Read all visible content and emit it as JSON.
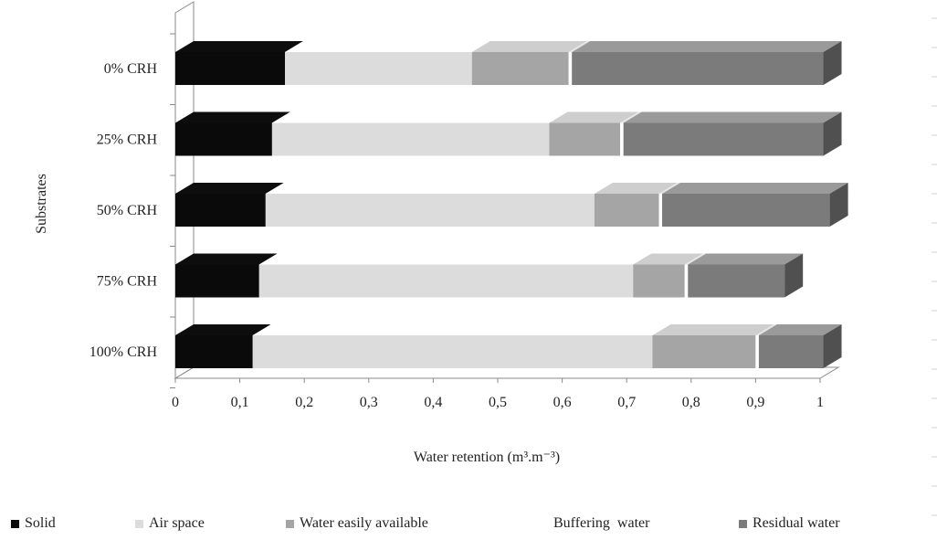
{
  "chart_data": {
    "type": "bar",
    "orientation": "horizontal",
    "stacked": true,
    "style": "3d",
    "categories": [
      "0% CRH",
      "25% CRH",
      "50% CRH",
      "75% CRH",
      "100% CRH"
    ],
    "series": [
      {
        "name": "Solid",
        "color": "#0a0a0a",
        "values": [
          0.17,
          0.15,
          0.14,
          0.13,
          0.12
        ]
      },
      {
        "name": "Air space",
        "color": "#dcdcdc",
        "values": [
          0.29,
          0.43,
          0.51,
          0.58,
          0.62
        ]
      },
      {
        "name": "Water easily available",
        "color": "#a5a5a5",
        "values": [
          0.15,
          0.11,
          0.1,
          0.08,
          0.16
        ]
      },
      {
        "name": "Buffering  water",
        "color": "#ffffff",
        "values": [
          0.005,
          0.005,
          0.005,
          0.005,
          0.005
        ]
      },
      {
        "name": "Residual water",
        "color": "#7b7b7b",
        "values": [
          0.39,
          0.31,
          0.26,
          0.15,
          0.1
        ]
      }
    ],
    "xlabel": "Water retention (m³.m⁻³)",
    "ylabel": "Substrates",
    "xlim": [
      0,
      1
    ],
    "xticks": [
      "0",
      "0,1",
      "0,2",
      "0,3",
      "0,4",
      "0,5",
      "0,6",
      "0,7",
      "0,8",
      "0,9",
      "1"
    ],
    "legend_position": "bottom",
    "grid": false
  }
}
